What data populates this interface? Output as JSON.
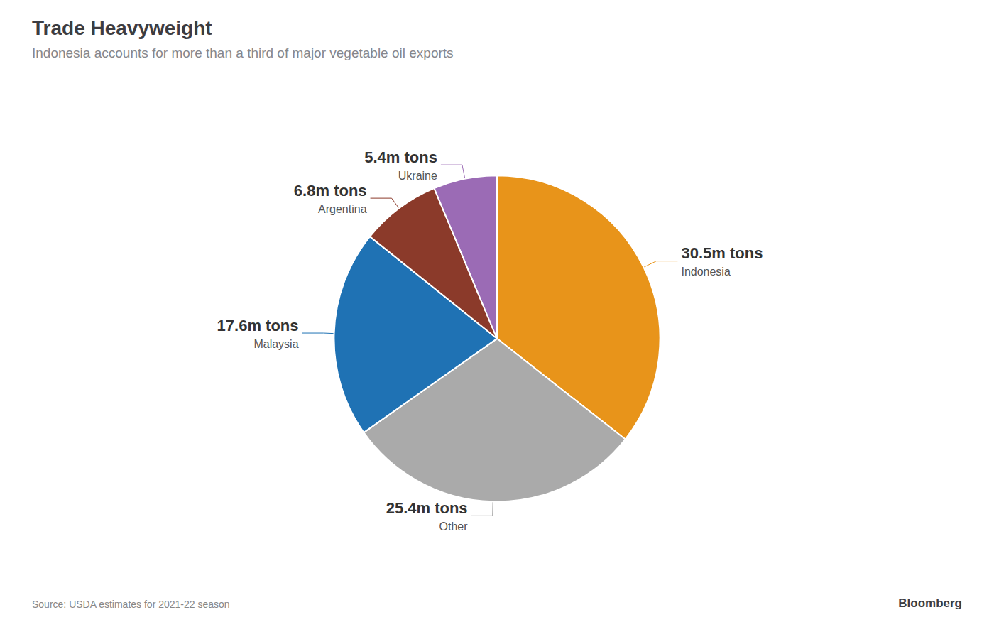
{
  "chart_data": {
    "type": "pie",
    "title": "Trade Heavyweight",
    "subtitle": "Indonesia accounts for more than a third of major vegetable oil exports",
    "annotations": [
      "Source: USDA estimates for 2021-22 season",
      "Bloomberg"
    ],
    "categories": [
      "Indonesia",
      "Other",
      "Malaysia",
      "Argentina",
      "Ukraine"
    ],
    "values": [
      30.5,
      25.4,
      17.6,
      6.8,
      5.4
    ],
    "value_labels": [
      "30.5m tons",
      "25.4m tons",
      "17.6m tons",
      "6.8m tons",
      "5.4m tons"
    ],
    "colors": [
      "#E8941A",
      "#AAAAAA",
      "#1F72B4",
      "#8B3A2A",
      "#9B6BB5"
    ],
    "data_labels": true
  }
}
